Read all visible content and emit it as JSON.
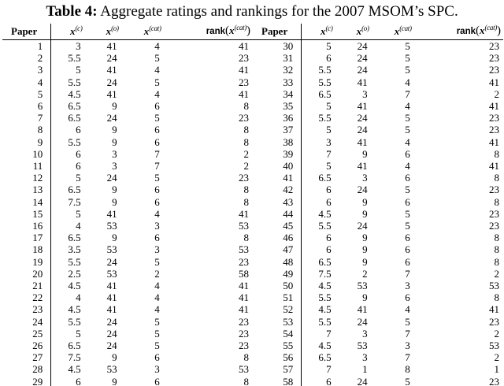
{
  "caption": {
    "label": "Table 4:",
    "text": " Aggregate ratings and rankings for the 2007 MSOM’s SPC."
  },
  "columns": {
    "paper": "Paper",
    "metrics": [
      {
        "key": "x-c",
        "fn": "",
        "open": "",
        "var": "x",
        "sup": "(c)",
        "close": ""
      },
      {
        "key": "x-o",
        "fn": "",
        "open": "",
        "var": "x",
        "sup": "(o)",
        "close": ""
      },
      {
        "key": "x-cat",
        "fn": "",
        "open": "",
        "var": "x",
        "sup": "(cat)",
        "close": ""
      },
      {
        "key": "rank-x-cat",
        "fn": "rank",
        "open": "(",
        "var": "x",
        "sup": "(cat)",
        "close": ")"
      }
    ]
  },
  "tables": [
    {
      "name": "papers-1-29",
      "rows": [
        [
          "1",
          "3",
          "41",
          "4",
          "41"
        ],
        [
          "2",
          "5.5",
          "24",
          "5",
          "23"
        ],
        [
          "3",
          "5",
          "41",
          "4",
          "41"
        ],
        [
          "4",
          "5.5",
          "24",
          "5",
          "23"
        ],
        [
          "5",
          "4.5",
          "41",
          "4",
          "41"
        ],
        [
          "6",
          "6.5",
          "9",
          "6",
          "8"
        ],
        [
          "7",
          "6.5",
          "24",
          "5",
          "23"
        ],
        [
          "8",
          "6",
          "9",
          "6",
          "8"
        ],
        [
          "9",
          "5.5",
          "9",
          "6",
          "8"
        ],
        [
          "10",
          "6",
          "3",
          "7",
          "2"
        ],
        [
          "11",
          "6",
          "3",
          "7",
          "2"
        ],
        [
          "12",
          "5",
          "24",
          "5",
          "23"
        ],
        [
          "13",
          "6.5",
          "9",
          "6",
          "8"
        ],
        [
          "14",
          "7.5",
          "9",
          "6",
          "8"
        ],
        [
          "15",
          "5",
          "41",
          "4",
          "41"
        ],
        [
          "16",
          "4",
          "53",
          "3",
          "53"
        ],
        [
          "17",
          "6.5",
          "9",
          "6",
          "8"
        ],
        [
          "18",
          "3.5",
          "53",
          "3",
          "53"
        ],
        [
          "19",
          "5.5",
          "24",
          "5",
          "23"
        ],
        [
          "20",
          "2.5",
          "53",
          "2",
          "58"
        ],
        [
          "21",
          "4.5",
          "41",
          "4",
          "41"
        ],
        [
          "22",
          "4",
          "41",
          "4",
          "41"
        ],
        [
          "23",
          "4.5",
          "41",
          "4",
          "41"
        ],
        [
          "24",
          "5.5",
          "24",
          "5",
          "23"
        ],
        [
          "25",
          "5",
          "24",
          "5",
          "23"
        ],
        [
          "26",
          "6.5",
          "24",
          "5",
          "23"
        ],
        [
          "27",
          "7.5",
          "9",
          "6",
          "8"
        ],
        [
          "28",
          "4.5",
          "53",
          "3",
          "53"
        ],
        [
          "29",
          "6",
          "9",
          "6",
          "8"
        ]
      ]
    },
    {
      "name": "papers-30-58",
      "rows": [
        [
          "30",
          "5",
          "24",
          "5",
          "23"
        ],
        [
          "31",
          "6",
          "24",
          "5",
          "23"
        ],
        [
          "32",
          "5.5",
          "24",
          "5",
          "23"
        ],
        [
          "33",
          "5.5",
          "41",
          "4",
          "41"
        ],
        [
          "34",
          "6.5",
          "3",
          "7",
          "2"
        ],
        [
          "35",
          "5",
          "41",
          "4",
          "41"
        ],
        [
          "36",
          "5.5",
          "24",
          "5",
          "23"
        ],
        [
          "37",
          "5",
          "24",
          "5",
          "23"
        ],
        [
          "38",
          "3",
          "41",
          "4",
          "41"
        ],
        [
          "39",
          "7",
          "9",
          "6",
          "8"
        ],
        [
          "40",
          "5",
          "41",
          "4",
          "41"
        ],
        [
          "41",
          "6.5",
          "3",
          "6",
          "8"
        ],
        [
          "42",
          "6",
          "24",
          "5",
          "23"
        ],
        [
          "43",
          "6",
          "9",
          "6",
          "8"
        ],
        [
          "44",
          "4.5",
          "9",
          "5",
          "23"
        ],
        [
          "45",
          "5.5",
          "24",
          "5",
          "23"
        ],
        [
          "46",
          "6",
          "9",
          "6",
          "8"
        ],
        [
          "47",
          "6",
          "9",
          "6",
          "8"
        ],
        [
          "48",
          "6.5",
          "9",
          "6",
          "8"
        ],
        [
          "49",
          "7.5",
          "2",
          "7",
          "2"
        ],
        [
          "50",
          "4.5",
          "53",
          "3",
          "53"
        ],
        [
          "51",
          "5.5",
          "9",
          "6",
          "8"
        ],
        [
          "52",
          "4.5",
          "41",
          "4",
          "41"
        ],
        [
          "53",
          "5.5",
          "24",
          "5",
          "23"
        ],
        [
          "54",
          "7",
          "3",
          "7",
          "2"
        ],
        [
          "55",
          "4.5",
          "53",
          "3",
          "53"
        ],
        [
          "56",
          "6.5",
          "3",
          "7",
          "2"
        ],
        [
          "57",
          "7",
          "1",
          "8",
          "1"
        ],
        [
          "58",
          "6",
          "24",
          "5",
          "23"
        ]
      ]
    }
  ]
}
